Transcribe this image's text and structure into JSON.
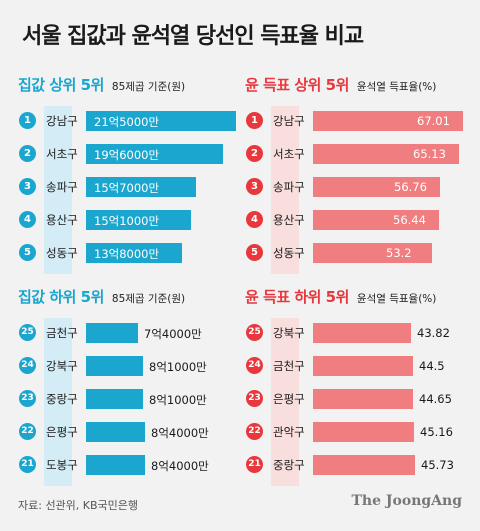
{
  "title": "서울 집값과 윤석열 당선인 득표율 비교",
  "colors": {
    "blue": "#1aa6cf",
    "blue_band": "#d3ecf5",
    "red": "#f07d7f",
    "red_dark": "#e8383d",
    "red_band": "#f9dede",
    "blue_header": "#1aa6cf"
  },
  "chart_data": [
    {
      "type": "bar",
      "title": "집값 상위 5위",
      "subtitle": "85제곱 기준(원)",
      "ranks": [
        "1",
        "2",
        "3",
        "4",
        "5"
      ],
      "categories": [
        "강남구",
        "서초구",
        "송파구",
        "용산구",
        "성동구"
      ],
      "values": [
        215000,
        196000,
        157000,
        151000,
        138000
      ],
      "labels": [
        "21억5000만",
        "19억6000만",
        "15억7000만",
        "15억1000만",
        "13억8000만"
      ],
      "xlim": [
        0,
        215000
      ]
    },
    {
      "type": "bar",
      "title": "윤 득표 상위 5위",
      "subtitle": "윤석열 득표율(%)",
      "ranks": [
        "1",
        "2",
        "3",
        "4",
        "5"
      ],
      "categories": [
        "강남구",
        "서초구",
        "송파구",
        "용산구",
        "성동구"
      ],
      "values": [
        67.01,
        65.13,
        56.76,
        56.44,
        53.2
      ],
      "labels": [
        "67.01",
        "65.13",
        "56.76",
        "56.44",
        "53.2"
      ],
      "xlim": [
        0,
        67.01
      ]
    },
    {
      "type": "bar",
      "title": "집값 하위 5위",
      "subtitle": "85제곱 기준(원)",
      "ranks": [
        "25",
        "24",
        "23",
        "22",
        "21"
      ],
      "categories": [
        "금천구",
        "강북구",
        "중랑구",
        "은평구",
        "도봉구"
      ],
      "values": [
        74000,
        81000,
        81000,
        84000,
        84000
      ],
      "labels": [
        "7억4000만",
        "8억1000만",
        "8억1000만",
        "8억4000만",
        "8억4000만"
      ],
      "xlim": [
        0,
        215000
      ]
    },
    {
      "type": "bar",
      "title": "윤 득표 하위 5위",
      "subtitle": "윤석열 득표율(%)",
      "ranks": [
        "25",
        "24",
        "23",
        "22",
        "21"
      ],
      "categories": [
        "강북구",
        "금천구",
        "은평구",
        "관악구",
        "중랑구"
      ],
      "values": [
        43.82,
        44.5,
        44.65,
        45.16,
        45.73
      ],
      "labels": [
        "43.82",
        "44.5",
        "44.65",
        "45.16",
        "45.73"
      ],
      "xlim": [
        0,
        67.01
      ]
    }
  ],
  "footer": {
    "source": "자료: 선관위, KB국민은행",
    "brand": "The JoongAng"
  }
}
